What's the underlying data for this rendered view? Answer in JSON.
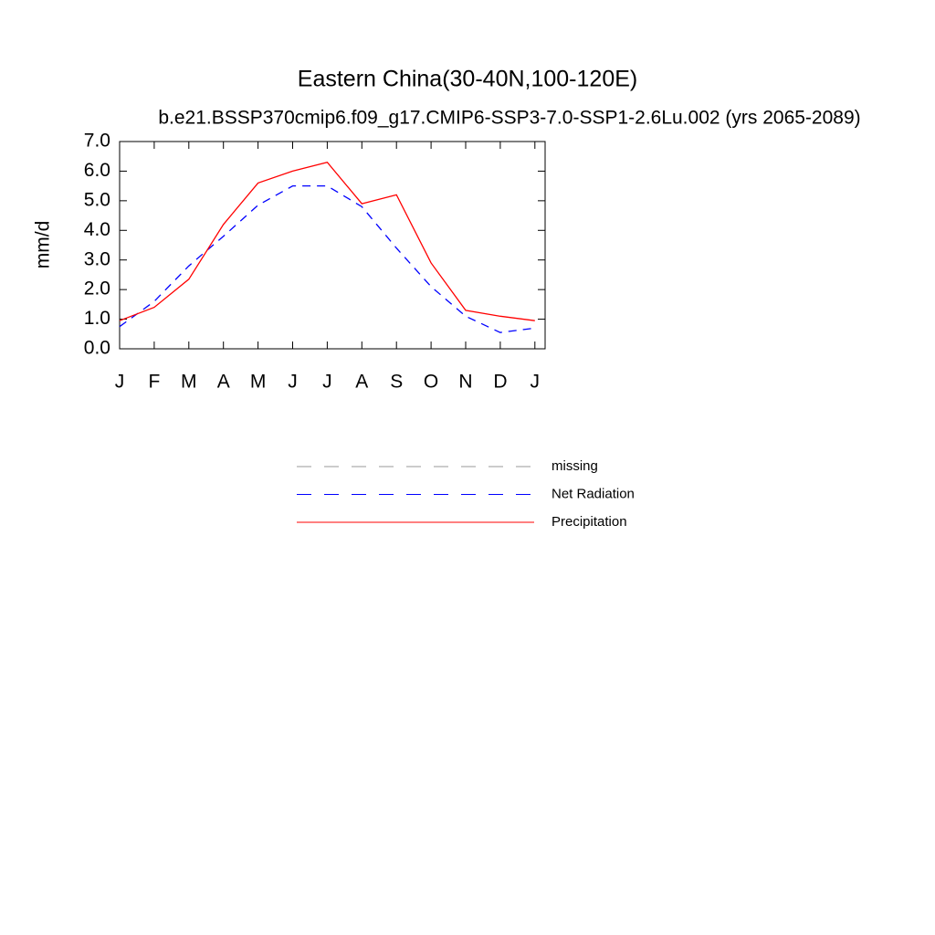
{
  "chart_data": {
    "type": "line",
    "title": "Eastern China(30-40N,100-120E)",
    "subtitle": "b.e21.BSSP370cmip6.f09_g17.CMIP6-SSP3-7.0-SSP1-2.6Lu.002 (yrs 2065-2089)",
    "y_label": "mm/d",
    "categories": [
      "J",
      "F",
      "M",
      "A",
      "M",
      "J",
      "J",
      "A",
      "S",
      "O",
      "N",
      "D",
      "J"
    ],
    "series": [
      {
        "name": "missing",
        "color": "#999999",
        "line_style": "dashed",
        "values": [
          null,
          null,
          null,
          null,
          null,
          null,
          null,
          null,
          null,
          null,
          null,
          null,
          null
        ]
      },
      {
        "name": "Net Radiation",
        "color": "#0000ff",
        "line_style": "dashed",
        "values": [
          0.75,
          1.6,
          2.8,
          3.8,
          4.85,
          5.5,
          5.5,
          4.8,
          3.4,
          2.1,
          1.1,
          0.55,
          0.7
        ]
      },
      {
        "name": "Precipitation",
        "color": "#ff0000",
        "line_style": "solid",
        "values": [
          0.95,
          1.4,
          2.35,
          4.2,
          5.6,
          6.0,
          6.3,
          4.9,
          5.2,
          2.9,
          1.3,
          1.1,
          0.95
        ]
      }
    ],
    "ylim": [
      0,
      7
    ],
    "yticks": [
      {
        "value": 0,
        "label": "0.0"
      },
      {
        "value": 1,
        "label": "1.0"
      },
      {
        "value": 2,
        "label": "2.0"
      },
      {
        "value": 3,
        "label": "3.0"
      },
      {
        "value": 4,
        "label": "4.0"
      },
      {
        "value": 5,
        "label": "5.0"
      },
      {
        "value": 6,
        "label": "6.0"
      },
      {
        "value": 7,
        "label": "7.0"
      }
    ],
    "grid": false
  }
}
